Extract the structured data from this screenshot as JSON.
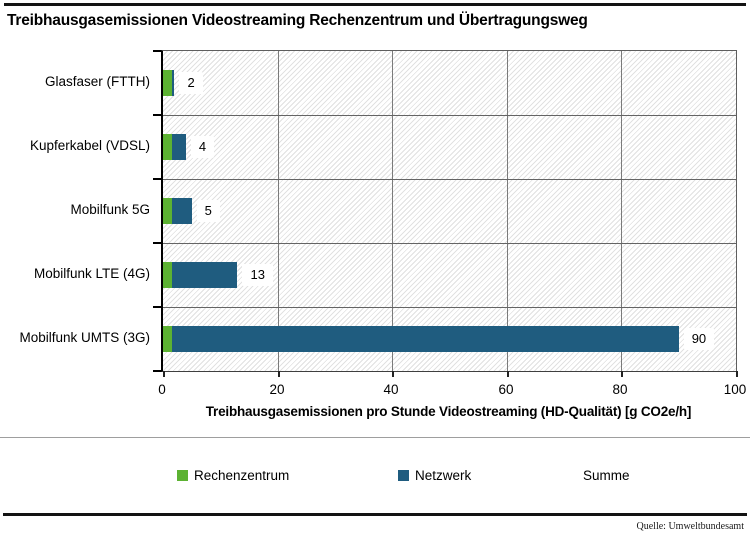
{
  "title": "Treibhausgasemissionen Videostreaming Rechenzentrum und Übertragungsweg",
  "source": "Quelle: Umweltbundesamt",
  "chart_data": {
    "type": "bar",
    "orientation": "horizontal",
    "stacked": true,
    "title": "Treibhausgasemissionen Videostreaming Rechenzentrum und Übertragungsweg",
    "categories": [
      "Glasfaser (FTTH)",
      "Kupferkabel (VDSL)",
      "Mobilfunk 5G",
      "Mobilfunk LTE (4G)",
      "Mobilfunk UMTS (3G)"
    ],
    "series": [
      {
        "name": "Rechenzentrum",
        "color": "#5CB232",
        "values": [
          1.5,
          1.5,
          1.5,
          1.5,
          1.5
        ]
      },
      {
        "name": "Netzwerk",
        "color": "#1F5C7F",
        "values": [
          0.5,
          2.5,
          3.5,
          11.5,
          88.5
        ]
      }
    ],
    "totals": [
      2,
      4,
      5,
      13,
      90
    ],
    "total_labels": [
      "2",
      "4",
      "5",
      "13",
      "90"
    ],
    "xlabel": "Treibhausgasemissionen pro Stunde Videostreaming (HD-Qualität) [g CO2e/h]",
    "xlim": [
      0,
      100
    ],
    "xticks": [
      0,
      20,
      40,
      60,
      80,
      100
    ],
    "xtick_labels": [
      "0",
      "20",
      "40",
      "60",
      "80",
      "100"
    ],
    "grid": "vertical",
    "plot_background": "diagonal-hatch",
    "legend_position": "bottom",
    "legend": [
      {
        "label": "Rechenzentrum",
        "color": "#5CB232"
      },
      {
        "label": "Netzwerk",
        "color": "#1F5C7F"
      },
      {
        "label": "Summe",
        "color": null
      }
    ]
  }
}
